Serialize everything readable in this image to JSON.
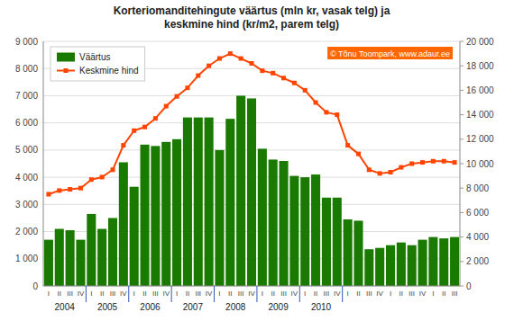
{
  "chart_data": {
    "type": "bar",
    "title": "Korteriomanditehingute väärtus (mln kr, vasak telg) ja\nkeskmine hind (kr/m2, parem telg)",
    "categories": [
      "I",
      "II",
      "III",
      "IV",
      "I",
      "II",
      "III",
      "IV",
      "I",
      "II",
      "III",
      "IV",
      "I",
      "II",
      "III",
      "IV",
      "I",
      "II",
      "III",
      "IV",
      "I",
      "II",
      "III",
      "IV",
      "I",
      "II",
      "III",
      "IV",
      "I",
      "II",
      "III",
      "IV",
      "I",
      "II",
      "III",
      "IV",
      "I",
      "II",
      "III"
    ],
    "groups": [
      {
        "label": "2004",
        "from": 0,
        "to": 3
      },
      {
        "label": "2005",
        "from": 4,
        "to": 7
      },
      {
        "label": "2006",
        "from": 8,
        "to": 11
      },
      {
        "label": "2007",
        "from": 12,
        "to": 15
      },
      {
        "label": "2008",
        "from": 16,
        "to": 19
      },
      {
        "label": "2009",
        "from": 20,
        "to": 23
      },
      {
        "label": "2010",
        "from": 24,
        "to": 27
      }
    ],
    "series": [
      {
        "name": "Väärtus",
        "type": "bar",
        "color": "#1a7a00",
        "values": [
          1700,
          2100,
          2050,
          1700,
          2650,
          2100,
          2500,
          4550,
          3650,
          5200,
          5150,
          5300,
          5400,
          6200,
          6200,
          6200,
          5000,
          6150,
          7000,
          6900,
          5050,
          4650,
          4600,
          4050,
          4000,
          4100,
          3250,
          3250,
          2450,
          2400,
          1350,
          1400,
          1500,
          1600,
          1500,
          1700,
          1800,
          1750,
          1800
        ]
      },
      {
        "name": "Keskmine hind",
        "type": "line",
        "color": "#ff4400",
        "marker": "square",
        "axis": "y2",
        "values": [
          7500,
          7800,
          7900,
          8000,
          8700,
          8900,
          9500,
          11500,
          12700,
          13000,
          13700,
          14700,
          15500,
          16200,
          17200,
          18000,
          18600,
          19000,
          18600,
          18200,
          17600,
          17400,
          17000,
          16600,
          16000,
          15000,
          14200,
          14000,
          11500,
          10800,
          9500,
          9200,
          9300,
          9700,
          10000,
          10100,
          10200,
          10200,
          10100
        ]
      }
    ],
    "ylim": [
      0,
      9000
    ],
    "yticks": [
      0,
      {
        "value": 1000,
        "label": "1 000"
      },
      {
        "value": 2000,
        "label": "2 000"
      },
      {
        "value": 3000,
        "label": "3 000"
      },
      {
        "value": 4000,
        "label": "4 000"
      },
      {
        "value": 5000,
        "label": "5 000"
      },
      {
        "value": 6000,
        "label": "6 000"
      },
      {
        "value": 7000,
        "label": "7 000"
      },
      {
        "value": 8000,
        "label": "8 000"
      },
      {
        "value": 9000,
        "label": "9 000"
      }
    ],
    "y2lim": [
      0,
      20000
    ],
    "y2ticks": [
      0,
      {
        "value": 2000,
        "label": "2 000"
      },
      {
        "value": 4000,
        "label": "4 000"
      },
      {
        "value": 6000,
        "label": "6 000"
      },
      {
        "value": 8000,
        "label": "8 000"
      },
      {
        "value": 10000,
        "label": "10 000"
      },
      {
        "value": 12000,
        "label": "12 000"
      },
      {
        "value": 14000,
        "label": "14 000"
      },
      {
        "value": 16000,
        "label": "16 000"
      },
      {
        "value": 18000,
        "label": "18 000"
      },
      {
        "value": 20000,
        "label": "20 000"
      }
    ],
    "grid": true,
    "legend": "upper left",
    "annotations": [
      {
        "text": "© Tõnu Toompark, www.adaur.ee",
        "color": "#ff6600"
      }
    ]
  }
}
